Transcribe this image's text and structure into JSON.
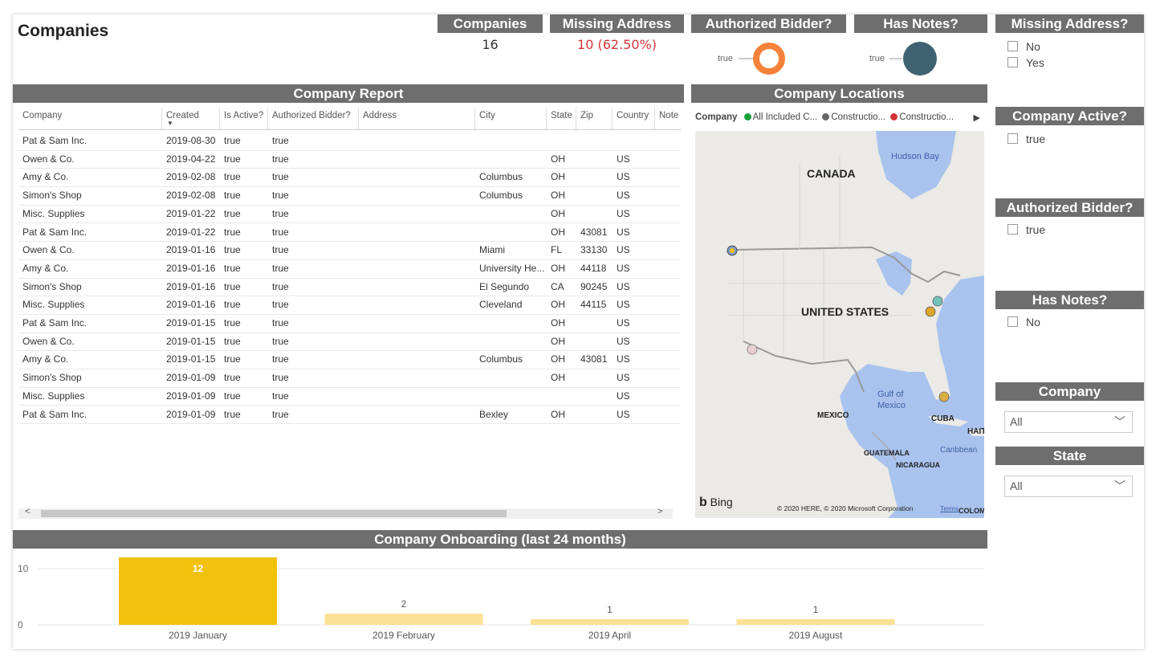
{
  "page": {
    "title": "Companies"
  },
  "kpis": [
    {
      "title": "Companies",
      "value": "16"
    },
    {
      "title": "Missing Address",
      "value": "10 (62.50%)"
    }
  ],
  "donuts": [
    {
      "title": "Authorized Bidder?",
      "label": "true",
      "color": "#f5823a",
      "style": "ring"
    },
    {
      "title": "Has Notes?",
      "label": "true",
      "color": "#3f6272",
      "style": "solid"
    }
  ],
  "report": {
    "title": "Company Report",
    "columns": [
      "Company",
      "Created",
      "Is Active?",
      "Authorized Bidder?",
      "Address",
      "City",
      "State",
      "Zip",
      "Country",
      "Note"
    ],
    "rows": [
      [
        "Pat & Sam Inc.",
        "2019-08-30",
        "true",
        "true",
        "",
        "",
        "",
        "",
        "",
        ""
      ],
      [
        "Owen & Co.",
        "2019-04-22",
        "true",
        "true",
        "",
        "",
        "OH",
        "",
        "US",
        ""
      ],
      [
        "Amy & Co.",
        "2019-02-08",
        "true",
        "true",
        "",
        "Columbus",
        "OH",
        "",
        "US",
        ""
      ],
      [
        "Simon's Shop",
        "2019-02-08",
        "true",
        "true",
        "",
        "Columbus",
        "OH",
        "",
        "US",
        ""
      ],
      [
        "Misc. Supplies",
        "2019-01-22",
        "true",
        "true",
        "",
        "",
        "OH",
        "",
        "US",
        ""
      ],
      [
        "Pat & Sam Inc.",
        "2019-01-22",
        "true",
        "true",
        "",
        "",
        "OH",
        "43081",
        "US",
        ""
      ],
      [
        "Owen & Co.",
        "2019-01-16",
        "true",
        "true",
        "",
        "Miami",
        "FL",
        "33130",
        "US",
        ""
      ],
      [
        "Amy & Co.",
        "2019-01-16",
        "true",
        "true",
        "",
        "University He...",
        "OH",
        "44118",
        "US",
        ""
      ],
      [
        "Simon's Shop",
        "2019-01-16",
        "true",
        "true",
        "",
        "El Segundo",
        "CA",
        "90245",
        "US",
        ""
      ],
      [
        "Misc. Supplies",
        "2019-01-16",
        "true",
        "true",
        "",
        "Cleveland",
        "OH",
        "44115",
        "US",
        ""
      ],
      [
        "Pat & Sam Inc.",
        "2019-01-15",
        "true",
        "true",
        "",
        "",
        "OH",
        "",
        "US",
        ""
      ],
      [
        "Owen & Co.",
        "2019-01-15",
        "true",
        "true",
        "",
        "",
        "OH",
        "",
        "US",
        ""
      ],
      [
        "Amy & Co.",
        "2019-01-15",
        "true",
        "true",
        "",
        "Columbus",
        "OH",
        "43081",
        "US",
        ""
      ],
      [
        "Simon's Shop",
        "2019-01-09",
        "true",
        "true",
        "",
        "",
        "OH",
        "",
        "US",
        ""
      ],
      [
        "Misc. Supplies",
        "2019-01-09",
        "true",
        "true",
        "",
        "",
        "",
        "",
        "US",
        ""
      ],
      [
        "Pat & Sam Inc.",
        "2019-01-09",
        "true",
        "true",
        "",
        "Bexley",
        "OH",
        "",
        "US",
        ""
      ]
    ]
  },
  "map": {
    "title": "Company Locations",
    "legend_title": "Company",
    "legend": [
      {
        "label": "All Included C...",
        "color": "#1aa13a"
      },
      {
        "label": "Constructio...",
        "color": "#666666"
      },
      {
        "label": "Constructio...",
        "color": "#d13438"
      }
    ],
    "labels": {
      "canada": "CANADA",
      "us": "UNITED STATES",
      "mexico": "MEXICO",
      "hudson": "Hudson Bay",
      "gulf1": "Gulf of",
      "gulf2": "Mexico",
      "cuba": "CUBA",
      "haiti": "HAITI",
      "guatemala": "GUATEMALA",
      "nicaragua": "NICARAGUA",
      "caribbean": "Caribbean",
      "colombia": "COLOM"
    },
    "bing": "Bing",
    "copyright": "© 2020 HERE, © 2020 Microsoft Corporation",
    "terms": "Terms"
  },
  "slicers": {
    "missing_address": {
      "title": "Missing Address?",
      "options": [
        "No",
        "Yes"
      ]
    },
    "company_active": {
      "title": "Company Active?",
      "options": [
        "true"
      ]
    },
    "authorized_bidder": {
      "title": "Authorized Bidder?",
      "options": [
        "true"
      ]
    },
    "has_notes": {
      "title": "Has Notes?",
      "options": [
        "No"
      ]
    },
    "company": {
      "title": "Company",
      "value": "All"
    },
    "state": {
      "title": "State",
      "value": "All"
    }
  },
  "chart_data": {
    "type": "bar",
    "title": "Company Onboarding (last 24 months)",
    "categories": [
      "2019 January",
      "2019 February",
      "2019 April",
      "2019 August"
    ],
    "values": [
      12,
      2,
      1,
      1
    ],
    "data_labels": [
      "12",
      "2",
      "1",
      "1"
    ],
    "yticks": [
      "10",
      "0"
    ],
    "ylim": [
      0,
      12
    ],
    "highlight_color": "#f2c10d",
    "color": "#fbe195",
    "grid": true
  }
}
